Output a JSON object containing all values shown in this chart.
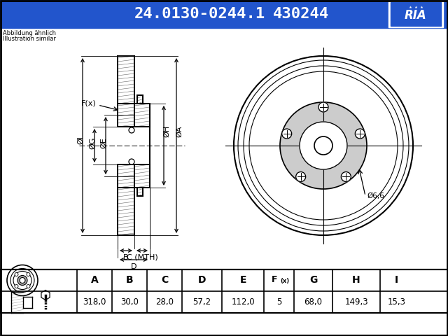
{
  "title_part_number": "24.0130-0244.1",
  "title_ref_number": "430244",
  "header_bg": "#2255cc",
  "header_text_color": "#ffffff",
  "note_line1": "Abbildung ähnlich",
  "note_line2": "Illustration similar",
  "table_headers_special": [
    "A",
    "B",
    "C",
    "D",
    "E",
    "F(x)",
    "G",
    "H",
    "I"
  ],
  "table_values": [
    "318,0",
    "30,0",
    "28,0",
    "57,2",
    "112,0",
    "5",
    "68,0",
    "149,3",
    "15,3"
  ],
  "bolt_hole_label": "Ø6,6",
  "background_color": "#ffffff",
  "border_color": "#000000",
  "diagram_line_color": "#000000",
  "table_border_color": "#000000"
}
